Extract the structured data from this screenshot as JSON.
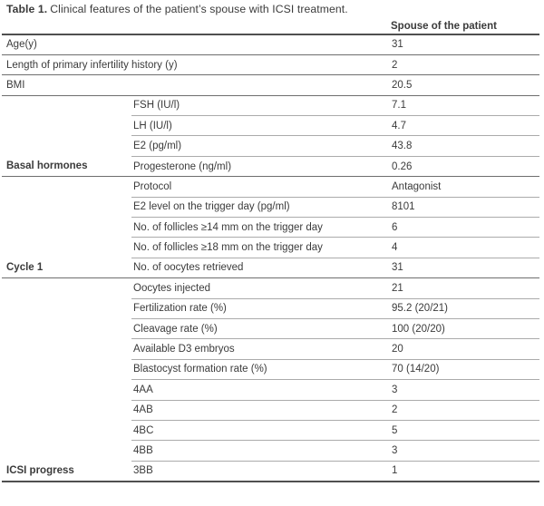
{
  "title": {
    "label": "Table 1.",
    "caption": "Clinical features of the patient’s spouse with ICSI treatment."
  },
  "table": {
    "value_header": "Spouse of the patient",
    "sections": [
      {
        "group": "",
        "rows": [
          {
            "param": "Age(y)",
            "value": "31"
          }
        ]
      },
      {
        "group": "",
        "rows": [
          {
            "param": "Length of primary infertility history (y)",
            "value": "2"
          }
        ]
      },
      {
        "group": "",
        "rows": [
          {
            "param": "BMI",
            "value": "20.5"
          }
        ]
      },
      {
        "group": "Basal hormones",
        "rows": [
          {
            "param": "FSH (IU/l)",
            "value": "7.1"
          },
          {
            "param": "LH (IU/l)",
            "value": "4.7"
          },
          {
            "param": "E2 (pg/ml)",
            "value": "43.8"
          },
          {
            "param": "Progesterone (ng/ml)",
            "value": "0.26"
          }
        ]
      },
      {
        "group": "Cycle 1",
        "rows": [
          {
            "param": "Protocol",
            "value": "Antagonist"
          },
          {
            "param": "E2 level on the trigger day (pg/ml)",
            "value": "8101"
          },
          {
            "param": "No. of follicles ≥14 mm on the trigger day",
            "value": "6"
          },
          {
            "param": "No. of follicles ≥18 mm on the trigger day",
            "value": "4"
          },
          {
            "param": "No. of oocytes retrieved",
            "value": "31"
          }
        ]
      },
      {
        "group": "ICSI progress",
        "rows": [
          {
            "param": "Oocytes injected",
            "value": "21"
          },
          {
            "param": "Fertilization rate (%)",
            "value": "95.2 (20/21)"
          },
          {
            "param": "Cleavage rate (%)",
            "value": "100 (20/20)"
          },
          {
            "param": "Available D3 embryos",
            "value": "20"
          },
          {
            "param": "Blastocyst formation rate (%)",
            "value": "70 (14/20)"
          },
          {
            "param": "4AA",
            "value": "3"
          },
          {
            "param": "4AB",
            "value": "2"
          },
          {
            "param": "4BC",
            "value": "5"
          },
          {
            "param": "4BB",
            "value": "3"
          },
          {
            "param": "3BB",
            "value": "1"
          }
        ]
      }
    ]
  },
  "colors": {
    "text": "#3b3b3b",
    "rule_light": "#ababab",
    "rule_mid": "#6e6e6e",
    "rule_dark": "#4f4f4f",
    "bg": "#ffffff"
  }
}
